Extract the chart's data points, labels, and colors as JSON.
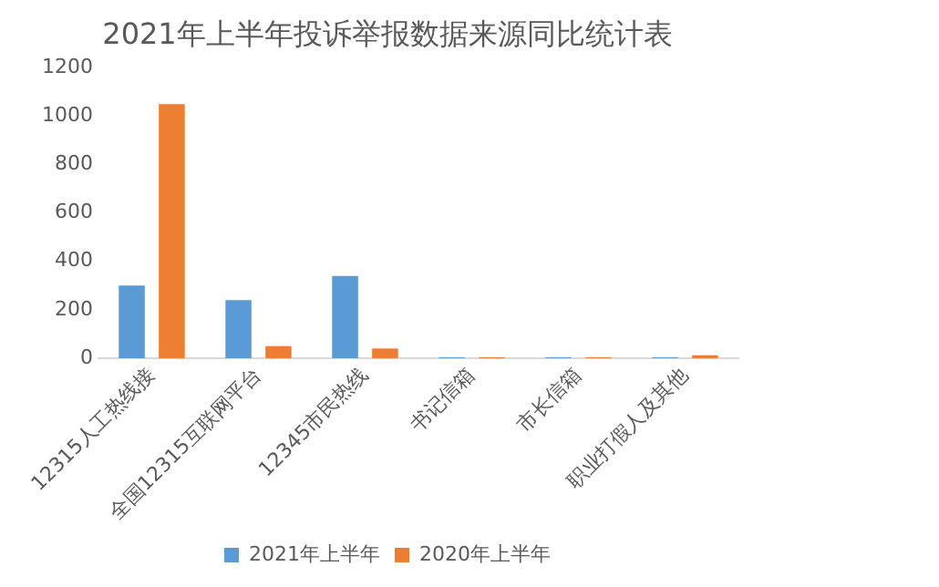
{
  "chart_data": {
    "type": "bar",
    "title": "2021年上半年投诉举报数据来源同比统计表",
    "categories": [
      "12315人工热线接",
      "全国12315互联网平台",
      "12345市民热线",
      "书记信箱",
      "市长信箱",
      "职业打假人及其他"
    ],
    "series": [
      {
        "name": "2021年上半年",
        "color": "#5b9bd5",
        "values": [
          300,
          240,
          340,
          4,
          4,
          4
        ]
      },
      {
        "name": "2020年上半年",
        "color": "#ed7d31",
        "values": [
          1050,
          50,
          40,
          4,
          4,
          12
        ]
      }
    ],
    "ylim": [
      0,
      1200
    ],
    "yticks": [
      0,
      200,
      400,
      600,
      800,
      1000,
      1200
    ],
    "grid": false,
    "legend": "bottom"
  }
}
